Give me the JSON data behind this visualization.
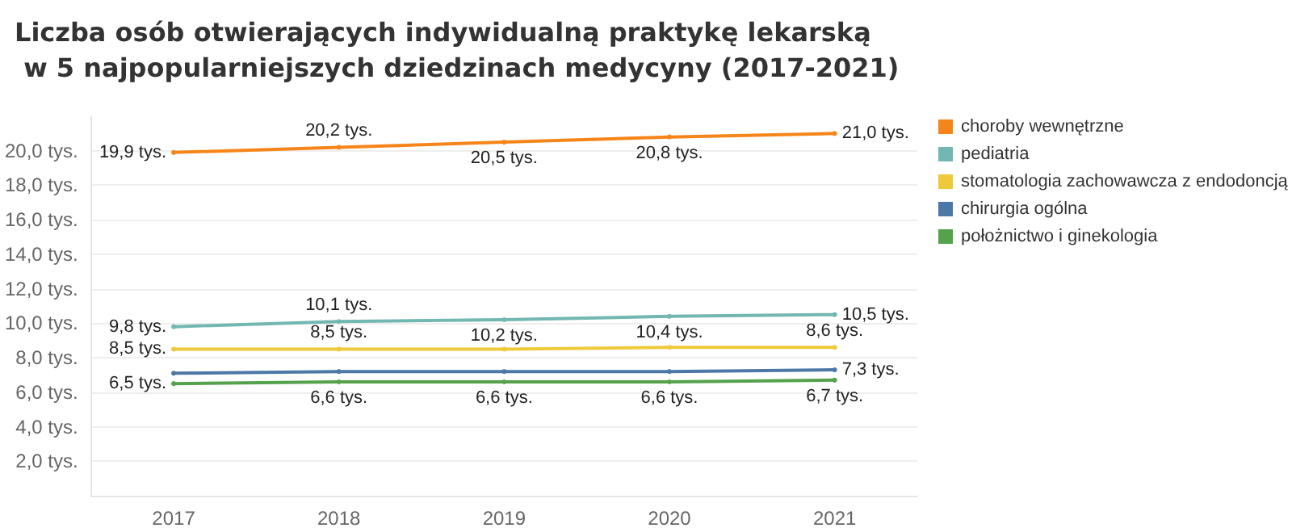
{
  "chart_data": {
    "type": "line",
    "title": "Liczba osób otwierających indywidualną praktykę lekarską w 5 najpopularniejszych dziedzinach medycyny (2017-2021)",
    "categories": [
      "2017",
      "2018",
      "2019",
      "2020",
      "2021"
    ],
    "series": [
      {
        "name": "choroby wewnętrzne",
        "color": "#f58518",
        "values": [
          19.9,
          20.2,
          20.5,
          20.8,
          21.0
        ],
        "value_labels": [
          "19,9 tys.",
          "20,2 tys.",
          "20,5 tys.",
          "20,8 tys.",
          "21,0 tys."
        ]
      },
      {
        "name": "pediatria",
        "color": "#72b7b2",
        "values": [
          9.8,
          10.1,
          10.2,
          10.4,
          10.5
        ],
        "value_labels": [
          "9,8 tys.",
          "10,1 tys.",
          "10,2 tys.",
          "10,4 tys.",
          "10,5 tys."
        ]
      },
      {
        "name": "stomatologia zachowawcza z endodoncją",
        "color": "#eeca3b",
        "values": [
          8.5,
          8.5,
          8.5,
          8.6,
          8.6
        ],
        "value_labels": [
          "8,5 tys.",
          "8,5 tys.",
          null,
          null,
          "8,6 tys."
        ]
      },
      {
        "name": "chirurgia ogólna",
        "color": "#4c78a8",
        "values": [
          7.1,
          7.2,
          7.2,
          7.2,
          7.3
        ],
        "value_labels": [
          null,
          null,
          null,
          null,
          "7,3 tys."
        ]
      },
      {
        "name": "położnictwo i ginekologia",
        "color": "#54a24b",
        "values": [
          6.5,
          6.6,
          6.6,
          6.6,
          6.7
        ],
        "value_labels": [
          "6,5 tys.",
          "6,6 tys.",
          "6,6 tys.",
          "6,6 tys.",
          "6,7 tys."
        ]
      }
    ],
    "ylim": [
      0,
      22
    ],
    "yticks": [
      {
        "value": 2,
        "label": "2,0 tys."
      },
      {
        "value": 4,
        "label": "4,0 tys."
      },
      {
        "value": 6,
        "label": "6,0 tys."
      },
      {
        "value": 8,
        "label": "8,0 tys."
      },
      {
        "value": 10,
        "label": "10,0 tys."
      },
      {
        "value": 12,
        "label": "12,0 tys."
      },
      {
        "value": 14,
        "label": "14,0 tys."
      },
      {
        "value": 16,
        "label": "16,0 tys."
      },
      {
        "value": 18,
        "label": "18,0 tys."
      },
      {
        "value": 20,
        "label": "20,0 tys."
      }
    ],
    "grid": "y",
    "legend": "top right",
    "marker": "circle",
    "line_style": "solid"
  }
}
